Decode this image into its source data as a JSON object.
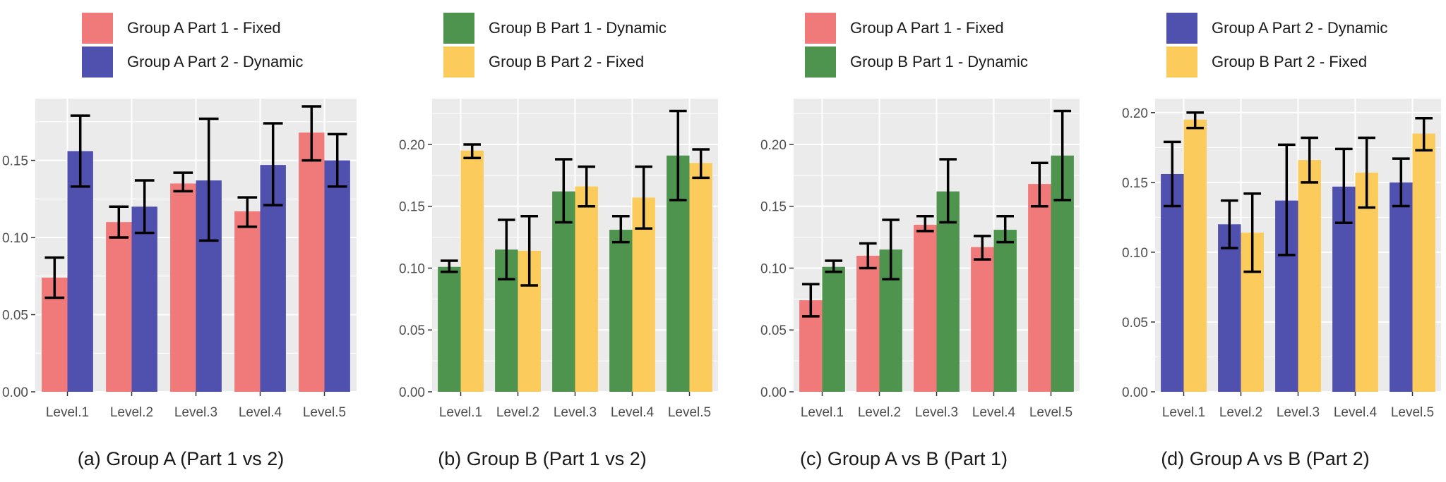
{
  "colors": {
    "group_a_part1": "#F07A7A",
    "group_a_part2": "#5050AE",
    "group_b_part1": "#4E944E",
    "group_b_part2": "#FBCB5B",
    "panel_bg": "#EBEBEB",
    "grid": "#FFFFFF",
    "errorbar": "#000000"
  },
  "chart_data": [
    {
      "type": "bar",
      "caption": "(a) Group A (Part 1 vs 2)",
      "legend_position": "top",
      "grid": true,
      "categories": [
        "Level.1",
        "Level.2",
        "Level.3",
        "Level.4",
        "Level.5"
      ],
      "yticks": [
        "0.00",
        "0.05",
        "0.10",
        "0.15"
      ],
      "ylim": [
        0,
        0.19
      ],
      "series": [
        {
          "name": "Group A Part 1 - Fixed",
          "color": "#F07A7A",
          "values": [
            0.074,
            0.11,
            0.135,
            0.117,
            0.168
          ],
          "err_low": [
            0.061,
            0.1,
            0.13,
            0.107,
            0.15
          ],
          "err_high": [
            0.087,
            0.12,
            0.142,
            0.126,
            0.185
          ]
        },
        {
          "name": "Group A Part 2 - Dynamic",
          "color": "#5050AE",
          "values": [
            0.156,
            0.12,
            0.137,
            0.147,
            0.15
          ],
          "err_low": [
            0.133,
            0.103,
            0.098,
            0.121,
            0.133
          ],
          "err_high": [
            0.179,
            0.137,
            0.177,
            0.174,
            0.167
          ]
        }
      ]
    },
    {
      "type": "bar",
      "caption": "(b) Group B (Part 1 vs 2)",
      "legend_position": "top",
      "grid": true,
      "categories": [
        "Level.1",
        "Level.2",
        "Level.3",
        "Level.4",
        "Level.5"
      ],
      "yticks": [
        "0.00",
        "0.05",
        "0.10",
        "0.15",
        "0.20"
      ],
      "ylim": [
        0,
        0.237
      ],
      "series": [
        {
          "name": "Group B Part 1 - Dynamic",
          "color": "#4E944E",
          "values": [
            0.101,
            0.115,
            0.162,
            0.131,
            0.191
          ],
          "err_low": [
            0.097,
            0.091,
            0.137,
            0.121,
            0.155
          ],
          "err_high": [
            0.106,
            0.139,
            0.188,
            0.142,
            0.227
          ]
        },
        {
          "name": "Group B Part 2 - Fixed",
          "color": "#FBCB5B",
          "values": [
            0.195,
            0.114,
            0.166,
            0.157,
            0.185
          ],
          "err_low": [
            0.189,
            0.086,
            0.15,
            0.132,
            0.173
          ],
          "err_high": [
            0.2,
            0.142,
            0.182,
            0.182,
            0.196
          ]
        }
      ]
    },
    {
      "type": "bar",
      "caption": "(c) Group A vs B (Part 1)",
      "legend_position": "top",
      "grid": true,
      "categories": [
        "Level.1",
        "Level.2",
        "Level.3",
        "Level.4",
        "Level.5"
      ],
      "yticks": [
        "0.00",
        "0.05",
        "0.10",
        "0.15",
        "0.20"
      ],
      "ylim": [
        0,
        0.237
      ],
      "series": [
        {
          "name": "Group A Part 1 - Fixed",
          "color": "#F07A7A",
          "values": [
            0.074,
            0.11,
            0.135,
            0.117,
            0.168
          ],
          "err_low": [
            0.061,
            0.1,
            0.13,
            0.107,
            0.15
          ],
          "err_high": [
            0.087,
            0.12,
            0.142,
            0.126,
            0.185
          ]
        },
        {
          "name": "Group B Part 1 - Dynamic",
          "color": "#4E944E",
          "values": [
            0.101,
            0.115,
            0.162,
            0.131,
            0.191
          ],
          "err_low": [
            0.097,
            0.091,
            0.137,
            0.121,
            0.155
          ],
          "err_high": [
            0.106,
            0.139,
            0.188,
            0.142,
            0.227
          ]
        }
      ]
    },
    {
      "type": "bar",
      "caption": "(d) Group A vs B (Part 2)",
      "legend_position": "top",
      "grid": true,
      "categories": [
        "Level.1",
        "Level.2",
        "Level.3",
        "Level.4",
        "Level.5"
      ],
      "yticks": [
        "0.00",
        "0.05",
        "0.10",
        "0.15",
        "0.20"
      ],
      "ylim": [
        0,
        0.21
      ],
      "series": [
        {
          "name": "Group A Part 2 - Dynamic",
          "color": "#5050AE",
          "values": [
            0.156,
            0.12,
            0.137,
            0.147,
            0.15
          ],
          "err_low": [
            0.133,
            0.103,
            0.098,
            0.121,
            0.133
          ],
          "err_high": [
            0.179,
            0.137,
            0.177,
            0.174,
            0.167
          ]
        },
        {
          "name": "Group B Part 2 - Fixed",
          "color": "#FBCB5B",
          "values": [
            0.195,
            0.114,
            0.166,
            0.157,
            0.185
          ],
          "err_low": [
            0.189,
            0.086,
            0.15,
            0.132,
            0.173
          ],
          "err_high": [
            0.2,
            0.142,
            0.182,
            0.182,
            0.196
          ]
        }
      ]
    }
  ]
}
